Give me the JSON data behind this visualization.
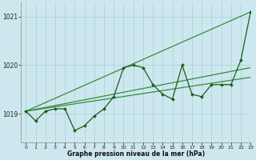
{
  "xlabel": "Graphe pression niveau de la mer (hPa)",
  "ylim": [
    1018.4,
    1021.3
  ],
  "xlim": [
    -0.5,
    23
  ],
  "yticks": [
    1019,
    1020,
    1021
  ],
  "xticks": [
    0,
    1,
    2,
    3,
    4,
    5,
    6,
    7,
    8,
    9,
    10,
    11,
    12,
    13,
    14,
    15,
    16,
    17,
    18,
    19,
    20,
    21,
    22,
    23
  ],
  "background_color": "#cce8ee",
  "grid_color": "#aacfd8",
  "line_color_main": "#1a5c1a",
  "line_color_trend": "#3a8a3a",
  "x": [
    0,
    1,
    2,
    3,
    4,
    5,
    6,
    7,
    8,
    9,
    10,
    11,
    12,
    13,
    14,
    15,
    16,
    17,
    18,
    19,
    20,
    21,
    22,
    23
  ],
  "values_main": [
    1019.05,
    1018.85,
    1019.05,
    1019.1,
    1019.1,
    1018.65,
    1018.75,
    1018.95,
    1019.1,
    1019.35,
    1019.95,
    1020.0,
    1019.95,
    1019.6,
    1019.4,
    1019.3,
    1020.0,
    1019.4,
    1019.35,
    1019.6,
    1019.6,
    1019.6,
    1020.1,
    1021.1
  ],
  "trend1": [
    1019.05,
    1021.1
  ],
  "trend1_x": [
    0,
    23
  ],
  "trend2": [
    1019.05,
    1019.75
  ],
  "trend2_x": [
    0,
    23
  ],
  "trend3": [
    1019.05,
    1019.95
  ],
  "trend3_x": [
    0,
    23
  ],
  "tick_fontsize": 4.5,
  "xlabel_fontsize": 5.5,
  "ytick_fontsize": 5.5
}
